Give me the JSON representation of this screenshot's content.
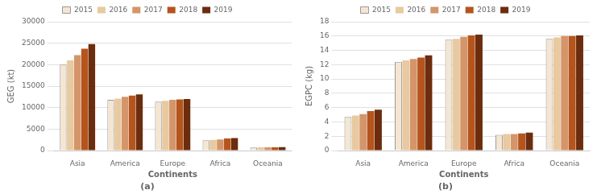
{
  "chart_data": [
    {
      "type": "bar",
      "title": "(a)",
      "categories": [
        "Asia",
        "America",
        "Europe",
        "Africa",
        "Oceania"
      ],
      "series": [
        {
          "name": "2015",
          "color": "#f5e6d3",
          "values": [
            20000,
            11800,
            11400,
            2400,
            700
          ]
        },
        {
          "name": "2016",
          "color": "#e8c9a0",
          "values": [
            21000,
            12100,
            11600,
            2500,
            750
          ]
        },
        {
          "name": "2017",
          "color": "#d4956a",
          "values": [
            22200,
            12500,
            11800,
            2600,
            750
          ]
        },
        {
          "name": "2018",
          "color": "#b5541c",
          "values": [
            23700,
            12800,
            11900,
            2800,
            750
          ]
        },
        {
          "name": "2019",
          "color": "#6b2d0e",
          "values": [
            24800,
            13100,
            12000,
            2900,
            800
          ]
        }
      ],
      "xlabel": "Continents",
      "ylabel": "GEG (kt)",
      "ylim": [
        0,
        30000
      ],
      "yticks": [
        0,
        5000,
        10000,
        15000,
        20000,
        25000,
        30000
      ],
      "grid": true,
      "legend": "top"
    },
    {
      "type": "bar",
      "title": "(b)",
      "categories": [
        "Asia",
        "America",
        "Europe",
        "Africa",
        "Oceania"
      ],
      "series": [
        {
          "name": "2015",
          "color": "#f5e6d3",
          "values": [
            4.7,
            12.4,
            15.5,
            2.2,
            15.6
          ]
        },
        {
          "name": "2016",
          "color": "#e8c9a0",
          "values": [
            4.9,
            12.6,
            15.6,
            2.3,
            15.8
          ]
        },
        {
          "name": "2017",
          "color": "#d4956a",
          "values": [
            5.1,
            12.8,
            15.9,
            2.3,
            16.0
          ]
        },
        {
          "name": "2018",
          "color": "#b5541c",
          "values": [
            5.5,
            13.0,
            16.1,
            2.4,
            16.0
          ]
        },
        {
          "name": "2019",
          "color": "#6b2d0e",
          "values": [
            5.7,
            13.3,
            16.2,
            2.5,
            16.1
          ]
        }
      ],
      "xlabel": "Continents",
      "ylabel": "EGPC (kg)",
      "ylim": [
        0,
        18
      ],
      "yticks": [
        0,
        2,
        4,
        6,
        8,
        10,
        12,
        14,
        16,
        18
      ],
      "grid": true,
      "legend": "top"
    }
  ]
}
